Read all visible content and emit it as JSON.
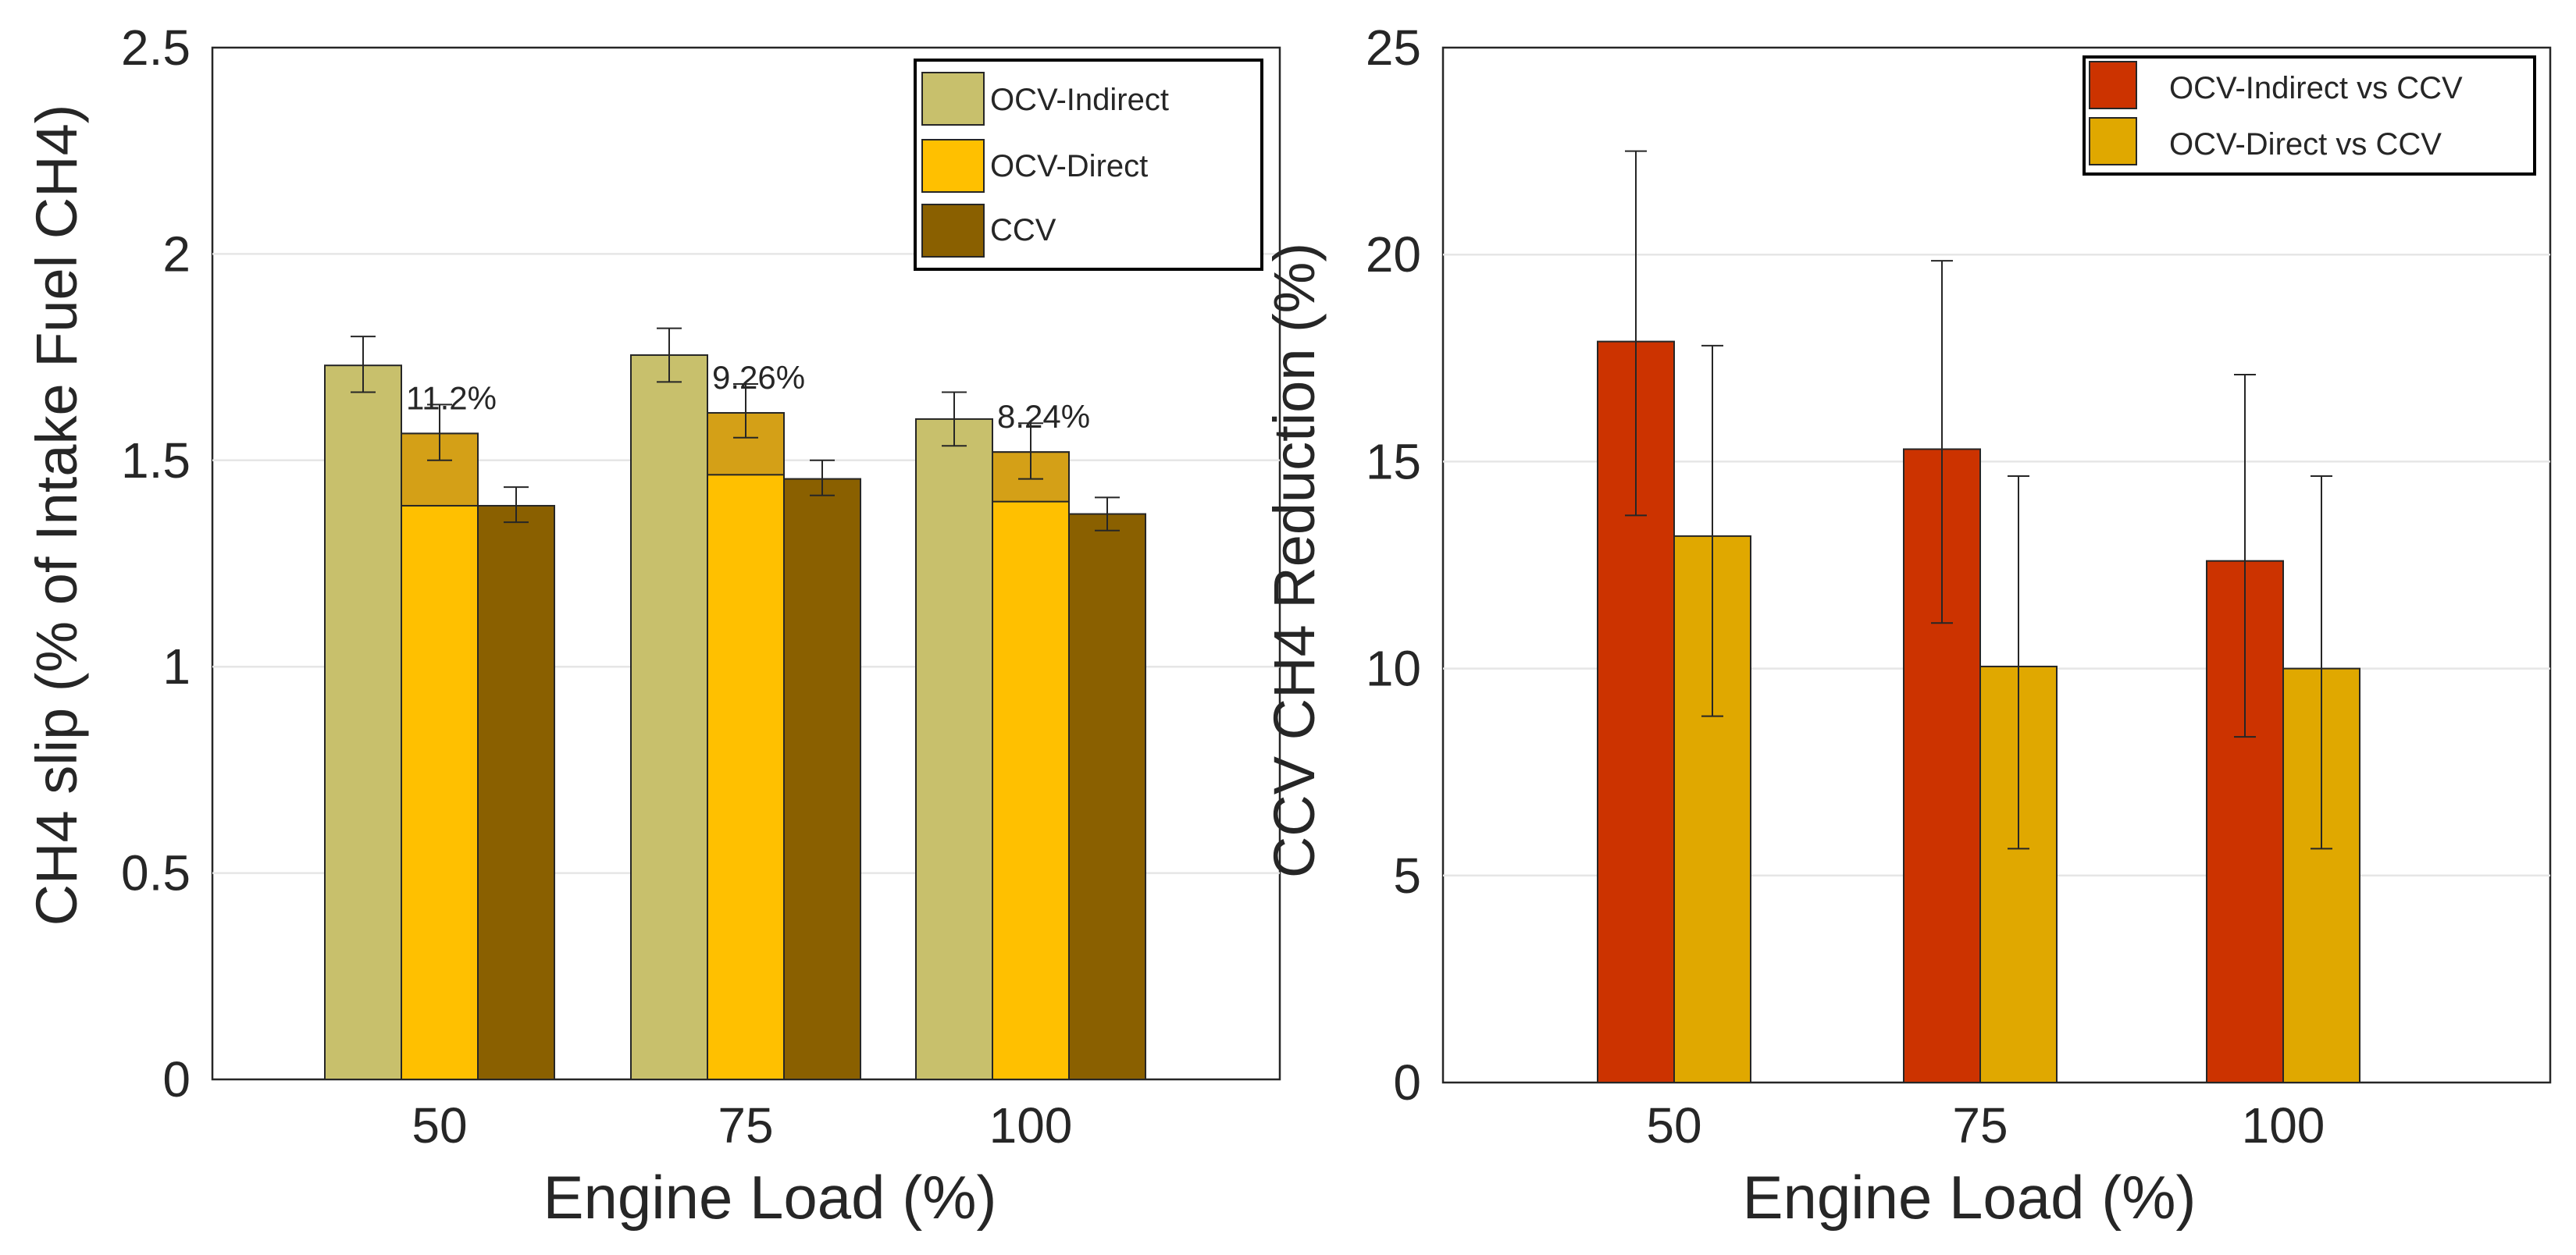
{
  "chart_data": [
    {
      "type": "bar",
      "title": "",
      "xlabel": "Engine Load (%)",
      "ylabel": "CH4 slip (% of Intake Fuel CH4)",
      "ylim": [
        0,
        2.5
      ],
      "yticks": [
        0,
        0.5,
        1,
        1.5,
        2,
        2.5
      ],
      "ytick_labels": [
        "0",
        "0.5",
        "1",
        "1.5",
        "2",
        "2.5"
      ],
      "grid": "horizontal",
      "legend_position": "top-right",
      "categories": [
        "50",
        "75",
        "100"
      ],
      "series": [
        {
          "name": "OCV-Indirect",
          "color": "#c8c06c",
          "values": [
            1.73,
            1.755,
            1.6
          ],
          "err_low": [
            1.665,
            1.69,
            1.535
          ],
          "err_high": [
            1.8,
            1.82,
            1.665
          ]
        },
        {
          "name": "OCV-Direct",
          "color": "#ffc000",
          "values": [
            1.565,
            1.615,
            1.52
          ],
          "err_low": [
            1.5,
            1.555,
            1.455
          ],
          "err_high": [
            1.635,
            1.685,
            1.59
          ],
          "overlay_color": "#d4a017",
          "overlay_base": [
            1.39,
            1.465,
            1.4
          ]
        },
        {
          "name": "CCV",
          "color": "#8a6000",
          "values": [
            1.39,
            1.455,
            1.37
          ],
          "err_low": [
            1.35,
            1.415,
            1.33
          ],
          "err_high": [
            1.435,
            1.5,
            1.41
          ]
        }
      ],
      "annotations": [
        "11.2%",
        "9.26%",
        "8.24%"
      ]
    },
    {
      "type": "bar",
      "title": "",
      "xlabel": "Engine Load (%)",
      "ylabel": "CCV CH4 Reduction (%)",
      "ylim": [
        0,
        25
      ],
      "yticks": [
        0,
        5,
        10,
        15,
        20,
        25
      ],
      "ytick_labels": [
        "0",
        "5",
        "10",
        "15",
        "20",
        "25"
      ],
      "grid": "horizontal",
      "legend_position": "top-right",
      "categories": [
        "50",
        "75",
        "100"
      ],
      "series": [
        {
          "name": "OCV-Indirect vs CCV",
          "color": "#cc3300",
          "values": [
            17.9,
            15.3,
            12.6
          ],
          "err_low": [
            13.7,
            11.1,
            8.35
          ],
          "err_high": [
            22.5,
            19.85,
            17.1
          ]
        },
        {
          "name": "OCV-Direct vs CCV",
          "color": "#e0a800",
          "values": [
            13.2,
            10.05,
            10.0
          ],
          "err_low": [
            8.85,
            5.65,
            5.65
          ],
          "err_high": [
            17.8,
            14.65,
            14.65
          ]
        }
      ]
    }
  ]
}
